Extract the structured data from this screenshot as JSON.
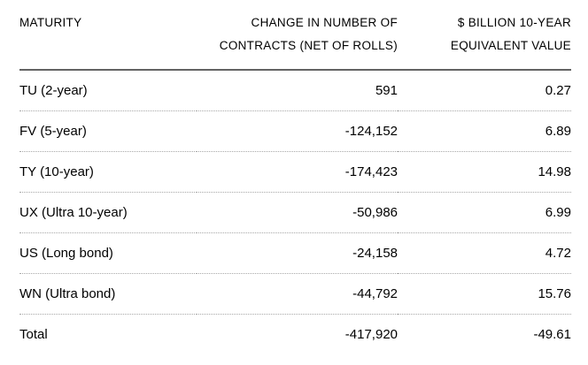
{
  "header": {
    "maturity": {
      "line1": "MATURITY",
      "line2": ""
    },
    "contracts": {
      "line1": "CHANGE IN NUMBER OF",
      "line2": "CONTRACTS (NET OF ROLLS)"
    },
    "value": {
      "line1": "$ BILLION 10-YEAR",
      "line2": "EQUIVALENT VALUE"
    }
  },
  "table": {
    "rows": [
      {
        "maturity": "TU (2-year)",
        "contracts": "591",
        "value": "0.27"
      },
      {
        "maturity": "FV (5-year)",
        "contracts": "-124,152",
        "value": "6.89"
      },
      {
        "maturity": "TY (10-year)",
        "contracts": "-174,423",
        "value": "14.98"
      },
      {
        "maturity": "UX (Ultra 10-year)",
        "contracts": "-50,986",
        "value": "6.99"
      },
      {
        "maturity": "US (Long bond)",
        "contracts": "-24,158",
        "value": "4.72"
      },
      {
        "maturity": "WN (Ultra bond)",
        "contracts": "-44,792",
        "value": "15.76"
      },
      {
        "maturity": "Total",
        "contracts": "-417,920",
        "value": "-49.61"
      }
    ]
  },
  "chart_data": {
    "type": "table",
    "columns": [
      "MATURITY",
      "CHANGE IN NUMBER OF CONTRACTS (NET OF ROLLS)",
      "$ BILLION 10-YEAR EQUIVALENT VALUE"
    ],
    "categories": [
      "TU (2-year)",
      "FV (5-year)",
      "TY (10-year)",
      "UX (Ultra 10-year)",
      "US (Long bond)",
      "WN (Ultra bond)",
      "Total"
    ],
    "series": [
      {
        "name": "CHANGE IN NUMBER OF CONTRACTS (NET OF ROLLS)",
        "values": [
          591,
          -124152,
          -174423,
          -50986,
          -24158,
          -44792,
          -417920
        ]
      },
      {
        "name": "$ BILLION 10-YEAR EQUIVALENT VALUE",
        "values": [
          0.27,
          6.89,
          14.98,
          6.99,
          4.72,
          15.76,
          -49.61
        ]
      }
    ]
  },
  "colors": {
    "background": "#ffffff",
    "text": "#000000",
    "header_rule": "#636363",
    "row_divider": "#a8a8a8"
  }
}
